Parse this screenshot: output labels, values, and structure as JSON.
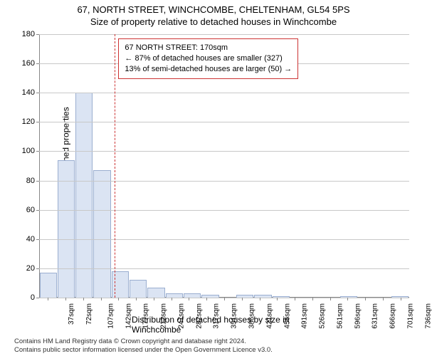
{
  "title_line1": "67, NORTH STREET, WINCHCOMBE, CHELTENHAM, GL54 5PS",
  "title_line2": "Size of property relative to detached houses in Winchcombe",
  "ylabel": "Number of detached properties",
  "xlabel": "Distribution of detached houses by size in Winchcombe",
  "chart": {
    "type": "histogram",
    "ylim": [
      0,
      180
    ],
    "yticks": [
      0,
      20,
      40,
      60,
      80,
      100,
      120,
      140,
      160,
      180
    ],
    "bar_fill": "#dbe4f3",
    "bar_stroke": "#9aaed0",
    "grid_color": "#c8c8c8",
    "background": "#ffffff",
    "ref_line_color": "#cc3333",
    "ref_value_sqm": 170,
    "x_min": 20,
    "x_max": 753,
    "x_bin_width": 35,
    "xtick_labels_every": 1,
    "xtick_labels": [
      "37sqm",
      "72sqm",
      "107sqm",
      "142sqm",
      "177sqm",
      "212sqm",
      "247sqm",
      "282sqm",
      "317sqm",
      "351sqm",
      "386sqm",
      "421sqm",
      "456sqm",
      "491sqm",
      "526sqm",
      "561sqm",
      "596sqm",
      "631sqm",
      "666sqm",
      "701sqm",
      "736sqm"
    ],
    "values": [
      17,
      94,
      140,
      87,
      18,
      12,
      7,
      3,
      3,
      2,
      0,
      2,
      2,
      1,
      0,
      0,
      0,
      1,
      0,
      0,
      1
    ]
  },
  "annotation": {
    "line1": "67 NORTH STREET: 170sqm",
    "line2": "← 87% of detached houses are smaller (327)",
    "line3": "13% of semi-detached houses are larger (50) →"
  },
  "footer_line1": "Contains HM Land Registry data © Crown copyright and database right 2024.",
  "footer_line2": "Contains public sector information licensed under the Open Government Licence v3.0."
}
